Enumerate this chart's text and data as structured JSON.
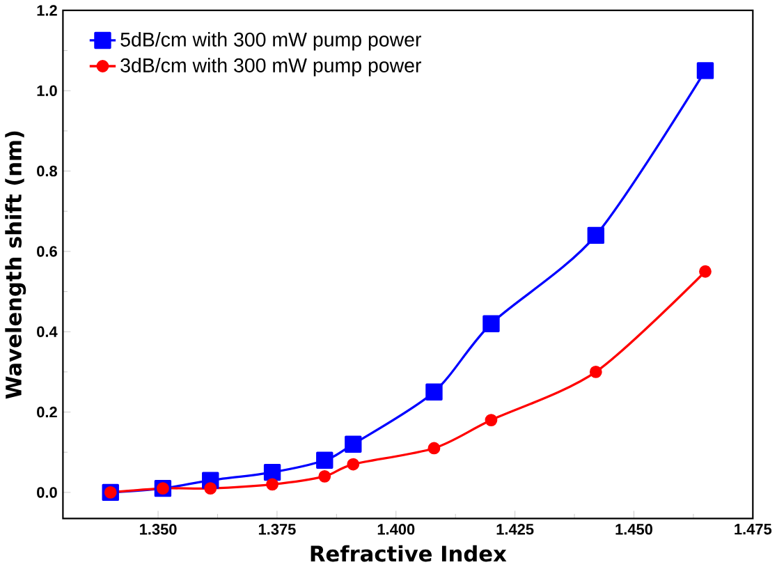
{
  "chart_data": {
    "type": "line",
    "xlabel": "Refractive Index",
    "ylabel": "Wavelength shift (nm)",
    "xlim": [
      1.33,
      1.475
    ],
    "xticks": [
      {
        "value": 1.35,
        "label": "1.350"
      },
      {
        "value": 1.375,
        "label": "1.375"
      },
      {
        "value": 1.4,
        "label": "1.400"
      },
      {
        "value": 1.425,
        "label": "1.425"
      },
      {
        "value": 1.45,
        "label": "1.450"
      },
      {
        "value": 1.475,
        "label": "1.475"
      }
    ],
    "ylim": [
      -0.065,
      1.2
    ],
    "yticks": [
      {
        "value": 0,
        "label": "0.0"
      },
      {
        "value": 0.2,
        "label": "0.2"
      },
      {
        "value": 0.4,
        "label": "0.4"
      },
      {
        "value": 0.6,
        "label": "0.6"
      },
      {
        "value": 0.8,
        "label": "0.8"
      },
      {
        "value": 1.0,
        "label": "1.0"
      },
      {
        "value": 1.2,
        "label": "1.2"
      }
    ],
    "x": [
      1.34,
      1.351,
      1.361,
      1.374,
      1.385,
      1.391,
      1.408,
      1.42,
      1.442,
      1.465
    ],
    "legend": "top left",
    "grid": false,
    "line_style": "solid",
    "series": [
      {
        "name": "5dB/cm with 300 mW pump power",
        "color": "#0000ff",
        "marker": "square",
        "values": [
          0.0,
          0.01,
          0.03,
          0.05,
          0.08,
          0.12,
          0.25,
          0.42,
          0.64,
          1.05
        ]
      },
      {
        "name": "3dB/cm with 300 mW pump power",
        "color": "#ff0000",
        "marker": "circle",
        "values": [
          0.0,
          0.01,
          0.01,
          0.02,
          0.04,
          0.07,
          0.11,
          0.18,
          0.3,
          0.55
        ]
      }
    ]
  }
}
